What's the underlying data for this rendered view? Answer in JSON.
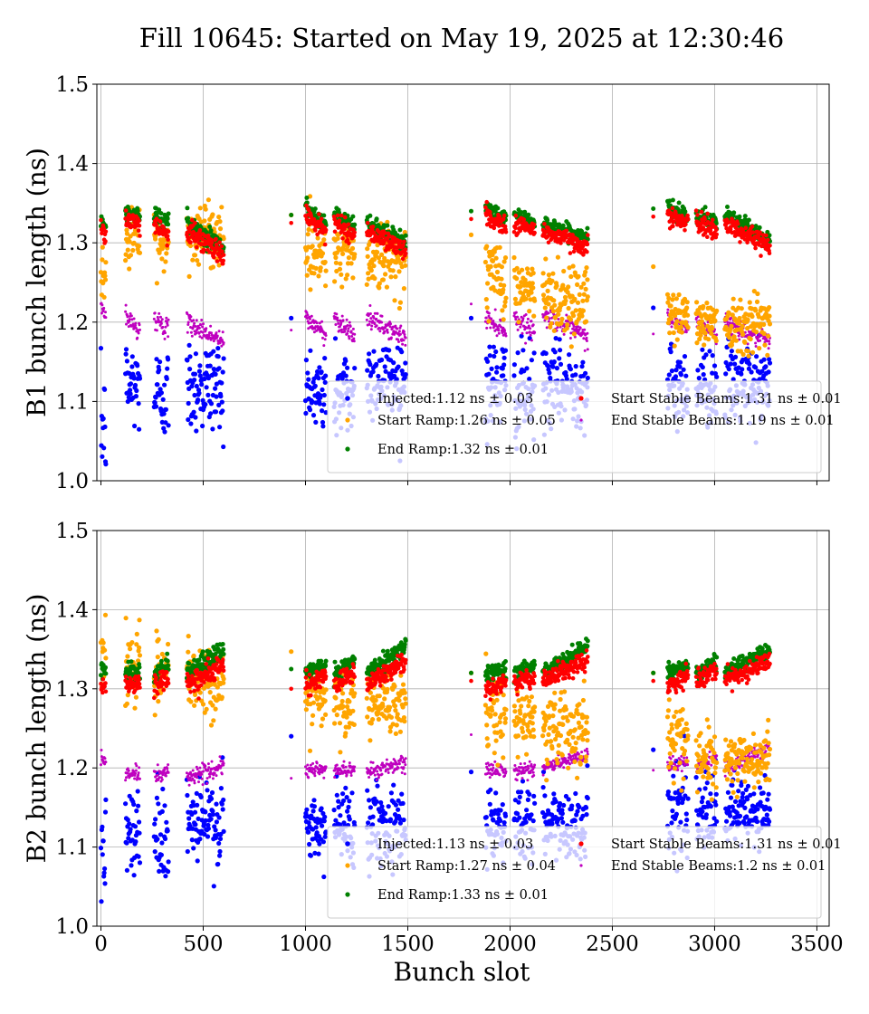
{
  "title": "Fill 10645: Started on May 19, 2025 at 12:30:46",
  "xlabel": "Bunch slot",
  "colors": {
    "Injected": "#0000ff",
    "Start Ramp": "#ffa500",
    "End Ramp": "#008000",
    "Start Stable Beams": "#ff0000",
    "End Stable Beams": "#bf00bf"
  },
  "chart_data": [
    {
      "type": "scatter",
      "ylabel": "B1 bunch length (ns)",
      "xlim": [
        -20,
        3560
      ],
      "ylim": [
        1.0,
        1.5
      ],
      "xticks": [
        0,
        500,
        1000,
        1500,
        2000,
        2500,
        3000,
        3500
      ],
      "yticks": [
        1.0,
        1.1,
        1.2,
        1.3,
        1.4,
        1.5
      ],
      "xtick_labels_shown": false,
      "grid": true,
      "legend_position": "lower-right",
      "legend": [
        {
          "label": "Injected:1.12 ns ± 0.03",
          "series": "Injected"
        },
        {
          "label": "Start Ramp:1.26 ns ± 0.05",
          "series": "Start Ramp"
        },
        {
          "label": "End Ramp:1.32 ns ± 0.01",
          "series": "End Ramp"
        },
        {
          "label": "Start Stable Beams:1.31 ns ± 0.01",
          "series": "Start Stable Beams"
        },
        {
          "label": "End Stable Beams:1.19 ns ± 0.01",
          "series": "End Stable Beams"
        }
      ],
      "train_slots": [
        [
          0,
          25
        ],
        [
          120,
          190
        ],
        [
          260,
          330
        ],
        [
          420,
          600
        ],
        [
          930,
          935
        ],
        [
          1000,
          1100
        ],
        [
          1140,
          1240
        ],
        [
          1300,
          1490
        ],
        [
          1810,
          1815
        ],
        [
          1880,
          1980
        ],
        [
          2020,
          2120
        ],
        [
          2160,
          2380
        ],
        [
          2700,
          2705
        ],
        [
          2770,
          2870
        ],
        [
          2910,
          3010
        ],
        [
          3050,
          3270
        ]
      ],
      "series": [
        {
          "name": "Injected",
          "mean": 1.12,
          "std": 0.03,
          "train_levels": [
            1.07,
            1.12,
            1.11,
            1.12,
            1.205,
            1.11,
            1.11,
            1.13,
            1.205,
            1.12,
            1.11,
            1.12,
            1.218,
            1.12,
            1.12,
            1.12
          ],
          "spread": [
            0.035,
            0.03,
            0.03,
            0.03,
            0,
            0.03,
            0.03,
            0.025,
            0,
            0.03,
            0.03,
            0.025,
            0,
            0.025,
            0.025,
            0.025
          ]
        },
        {
          "name": "Start Ramp",
          "mean": 1.26,
          "std": 0.05,
          "train_levels": [
            1.25,
            1.31,
            1.3,
            1.31,
            1.335,
            1.29,
            1.29,
            1.28,
            1.31,
            1.26,
            1.24,
            1.23,
            1.27,
            1.21,
            1.2,
            1.2
          ],
          "spread": [
            0.02,
            0.02,
            0.02,
            0.02,
            0,
            0.02,
            0.02,
            0.02,
            0,
            0.025,
            0.02,
            0.025,
            0,
            0.015,
            0.015,
            0.018
          ]
        },
        {
          "name": "End Ramp",
          "mean": 1.32,
          "std": 0.01,
          "train_start": [
            1.33,
            1.34,
            1.335,
            1.325,
            1.335,
            1.345,
            1.335,
            1.325,
            1.34,
            1.345,
            1.335,
            1.325,
            1.343,
            1.345,
            1.335,
            1.335
          ],
          "train_end": [
            1.32,
            1.33,
            1.325,
            1.295,
            1.335,
            1.325,
            1.32,
            1.3,
            1.34,
            1.33,
            1.325,
            1.305,
            1.343,
            1.335,
            1.325,
            1.305
          ],
          "spread": [
            0.005,
            0.006,
            0.006,
            0.006,
            0,
            0.005,
            0.005,
            0.005,
            0,
            0.005,
            0.005,
            0.005,
            0,
            0.005,
            0.005,
            0.005
          ]
        },
        {
          "name": "Start Stable Beams",
          "mean": 1.31,
          "std": 0.01,
          "train_start": [
            1.32,
            1.33,
            1.325,
            1.315,
            1.325,
            1.335,
            1.325,
            1.315,
            1.33,
            1.335,
            1.325,
            1.315,
            1.333,
            1.335,
            1.325,
            1.325
          ],
          "train_end": [
            1.31,
            1.32,
            1.31,
            1.285,
            1.325,
            1.315,
            1.31,
            1.29,
            1.33,
            1.32,
            1.315,
            1.295,
            1.333,
            1.325,
            1.315,
            1.295
          ],
          "spread": [
            0.006,
            0.006,
            0.006,
            0.007,
            0,
            0.006,
            0.006,
            0.006,
            0,
            0.006,
            0.006,
            0.006,
            0,
            0.006,
            0.006,
            0.006
          ]
        },
        {
          "name": "End Stable Beams",
          "mean": 1.19,
          "std": 0.01,
          "train_start": [
            1.22,
            1.205,
            1.205,
            1.2,
            1.19,
            1.205,
            1.205,
            1.205,
            1.223,
            1.205,
            1.205,
            1.21,
            1.185,
            1.205,
            1.2,
            1.2
          ],
          "train_end": [
            1.21,
            1.19,
            1.19,
            1.175,
            1.19,
            1.185,
            1.185,
            1.18,
            1.223,
            1.19,
            1.19,
            1.18,
            1.185,
            1.19,
            1.185,
            1.175
          ],
          "spread": [
            0.006,
            0.006,
            0.006,
            0.006,
            0,
            0.006,
            0.006,
            0.006,
            0,
            0.006,
            0.006,
            0.006,
            0,
            0.006,
            0.006,
            0.006
          ]
        }
      ]
    },
    {
      "type": "scatter",
      "ylabel": "B2 bunch length (ns)",
      "xlabel": "Bunch slot",
      "xlim": [
        -20,
        3560
      ],
      "ylim": [
        1.0,
        1.5
      ],
      "xticks": [
        0,
        500,
        1000,
        1500,
        2000,
        2500,
        3000,
        3500
      ],
      "yticks": [
        1.0,
        1.1,
        1.2,
        1.3,
        1.4,
        1.5
      ],
      "xtick_labels_shown": true,
      "grid": true,
      "legend_position": "lower-right",
      "legend": [
        {
          "label": "Injected:1.13 ns ± 0.03",
          "series": "Injected"
        },
        {
          "label": "Start Ramp:1.27 ns ± 0.04",
          "series": "Start Ramp"
        },
        {
          "label": "End Ramp:1.33 ns ± 0.01",
          "series": "End Ramp"
        },
        {
          "label": "Start Stable Beams:1.31 ns ± 0.01",
          "series": "Start Stable Beams"
        },
        {
          "label": "End Stable Beams:1.2 ns ± 0.01",
          "series": "End Stable Beams"
        }
      ],
      "train_slots": [
        [
          0,
          25
        ],
        [
          120,
          190
        ],
        [
          260,
          330
        ],
        [
          420,
          600
        ],
        [
          930,
          935
        ],
        [
          1000,
          1100
        ],
        [
          1140,
          1240
        ],
        [
          1300,
          1490
        ],
        [
          1810,
          1815
        ],
        [
          1880,
          1980
        ],
        [
          2020,
          2120
        ],
        [
          2160,
          2380
        ],
        [
          2700,
          2705
        ],
        [
          2770,
          2870
        ],
        [
          2910,
          3010
        ],
        [
          3050,
          3270
        ]
      ],
      "series": [
        {
          "name": "Injected",
          "mean": 1.13,
          "std": 0.03,
          "train_levels": [
            1.13,
            1.12,
            1.12,
            1.13,
            1.24,
            1.12,
            1.13,
            1.13,
            1.195,
            1.13,
            1.13,
            1.13,
            1.223,
            1.15,
            1.14,
            1.14
          ],
          "spread": [
            0.04,
            0.03,
            0.03,
            0.03,
            0,
            0.025,
            0.025,
            0.025,
            0,
            0.025,
            0.025,
            0.025,
            0,
            0.025,
            0.025,
            0.025
          ]
        },
        {
          "name": "Start Ramp",
          "mean": 1.27,
          "std": 0.04,
          "train_levels": [
            1.35,
            1.33,
            1.32,
            1.31,
            1.347,
            1.29,
            1.28,
            1.28,
            1.32,
            1.27,
            1.26,
            1.25,
            1.32,
            1.24,
            1.21,
            1.21
          ],
          "spread": [
            0.02,
            0.025,
            0.02,
            0.02,
            0,
            0.02,
            0.02,
            0.02,
            0,
            0.025,
            0.02,
            0.025,
            0,
            0.02,
            0.02,
            0.018
          ]
        },
        {
          "name": "End Ramp",
          "mean": 1.33,
          "std": 0.01,
          "train_start": [
            1.32,
            1.32,
            1.32,
            1.32,
            1.325,
            1.32,
            1.32,
            1.32,
            1.32,
            1.32,
            1.32,
            1.32,
            1.32,
            1.32,
            1.32,
            1.32
          ],
          "train_end": [
            1.325,
            1.325,
            1.33,
            1.35,
            1.325,
            1.33,
            1.335,
            1.355,
            1.32,
            1.325,
            1.33,
            1.355,
            1.32,
            1.33,
            1.335,
            1.35
          ],
          "spread": [
            0.005,
            0.005,
            0.005,
            0.006,
            0,
            0.005,
            0.005,
            0.005,
            0,
            0.005,
            0.005,
            0.005,
            0,
            0.005,
            0.005,
            0.005
          ]
        },
        {
          "name": "Start Stable Beams",
          "mean": 1.31,
          "std": 0.01,
          "train_start": [
            1.3,
            1.305,
            1.305,
            1.305,
            1.3,
            1.305,
            1.305,
            1.305,
            1.31,
            1.3,
            1.305,
            1.31,
            1.31,
            1.305,
            1.31,
            1.31
          ],
          "train_end": [
            1.305,
            1.31,
            1.315,
            1.33,
            1.3,
            1.315,
            1.32,
            1.335,
            1.31,
            1.31,
            1.315,
            1.335,
            1.31,
            1.315,
            1.32,
            1.335
          ],
          "spread": [
            0.006,
            0.006,
            0.006,
            0.007,
            0,
            0.006,
            0.006,
            0.006,
            0,
            0.006,
            0.006,
            0.006,
            0,
            0.006,
            0.006,
            0.006
          ]
        },
        {
          "name": "End Stable Beams",
          "mean": 1.2,
          "std": 0.01,
          "train_start": [
            1.215,
            1.19,
            1.19,
            1.19,
            1.187,
            1.195,
            1.195,
            1.195,
            1.242,
            1.195,
            1.195,
            1.2,
            1.197,
            1.2,
            1.2,
            1.2
          ],
          "train_end": [
            1.21,
            1.195,
            1.195,
            1.2,
            1.187,
            1.2,
            1.2,
            1.205,
            1.242,
            1.2,
            1.2,
            1.215,
            1.197,
            1.21,
            1.215,
            1.225
          ],
          "spread": [
            0.005,
            0.005,
            0.005,
            0.005,
            0,
            0.005,
            0.005,
            0.005,
            0,
            0.005,
            0.005,
            0.005,
            0,
            0.005,
            0.005,
            0.005
          ]
        }
      ]
    }
  ]
}
